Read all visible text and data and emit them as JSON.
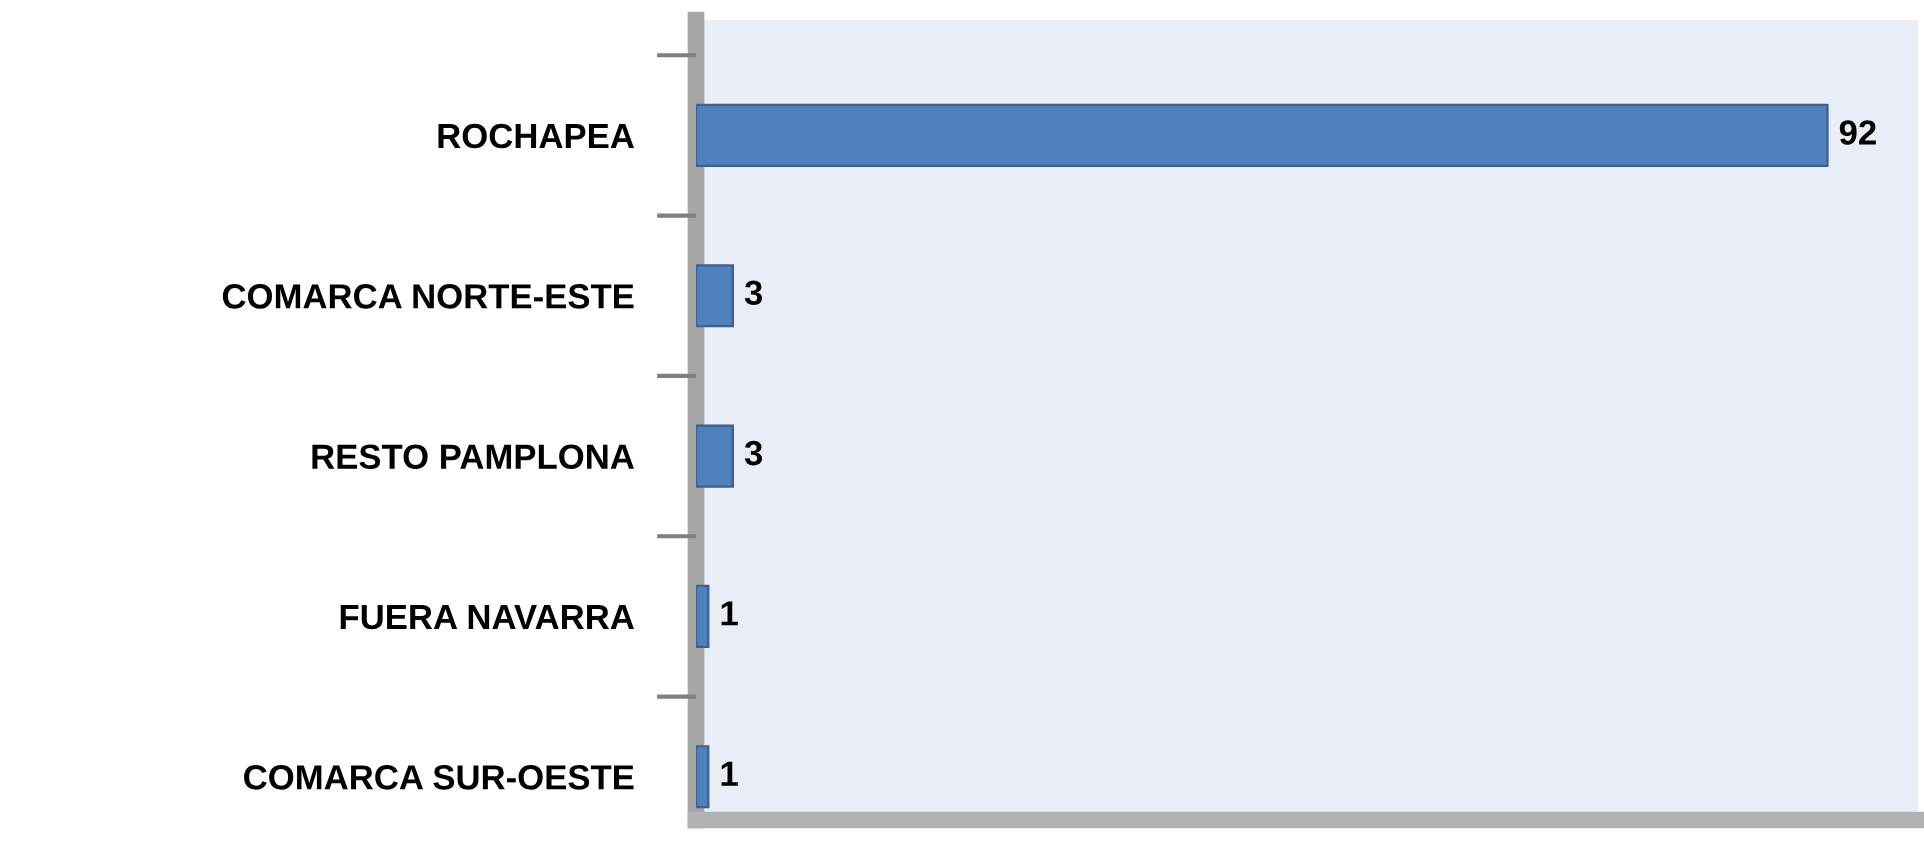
{
  "chart_data": {
    "type": "bar",
    "orientation": "horizontal",
    "categories": [
      "ROCHAPEA",
      "COMARCA NORTE-ESTE",
      "RESTO PAMPLONA",
      "FUERA NAVARRA",
      "COMARCA SUR-OESTE"
    ],
    "values": [
      92,
      3,
      3,
      1,
      1
    ],
    "color": "#4f81bd",
    "data_labels": true
  }
}
